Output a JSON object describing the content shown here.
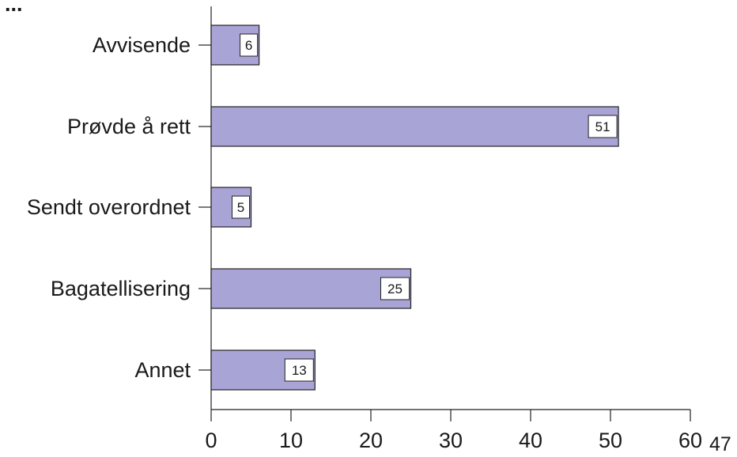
{
  "header_partial": "...",
  "page_number": "47",
  "chart_data": {
    "type": "bar",
    "orientation": "horizontal",
    "categories": [
      "Avvisende",
      "Prøvde å rett",
      "Sendt overordnet",
      "Bagatellisering",
      "Annet"
    ],
    "values": [
      6,
      51,
      5,
      25,
      13
    ],
    "xlim": [
      0,
      60
    ],
    "xticks": [
      0,
      10,
      20,
      30,
      40,
      50,
      60
    ],
    "bar_color": "#a9a4d6",
    "grid": false
  }
}
